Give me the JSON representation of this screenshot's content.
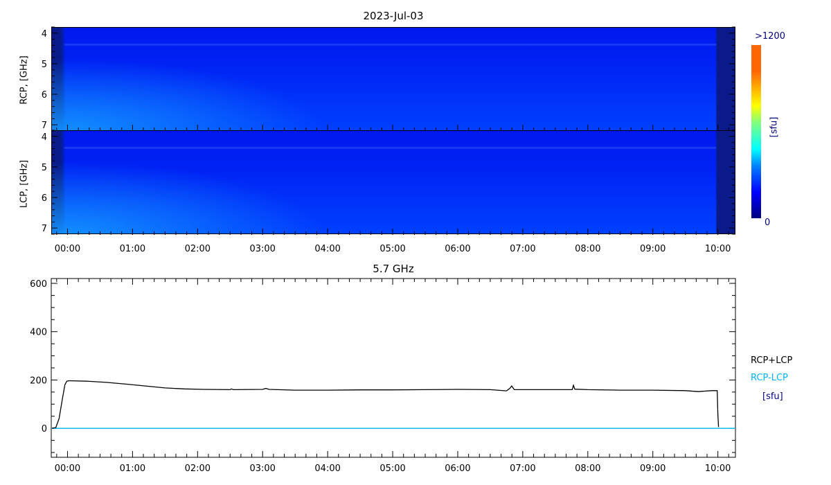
{
  "chart_data": [
    {
      "type": "heatmap",
      "title": "2023-Jul-03",
      "panels": [
        {
          "ylabel": "RCP, [GHz]"
        },
        {
          "ylabel": "LCP, [GHz]"
        }
      ],
      "yticks": [
        "4",
        "5",
        "6",
        "7"
      ],
      "ylim": [
        7.2,
        3.8
      ],
      "xticks": [
        "00:00",
        "01:00",
        "02:00",
        "03:00",
        "04:00",
        "05:00",
        "06:00",
        "07:00",
        "08:00",
        "09:00",
        "10:00"
      ],
      "xlim_hours": [
        -0.25,
        10.27
      ],
      "colorbar": {
        "min_label": "0",
        "max_label": ">1200",
        "unit": "[sfu]",
        "colormap": [
          "#00007f",
          "#0000ff",
          "#00ffff",
          "#ffff00",
          "#ff6600"
        ]
      }
    },
    {
      "type": "line",
      "title": "5.7 GHz",
      "ylim": [
        -120,
        620
      ],
      "yticks": [
        "600",
        "400",
        "200",
        "0"
      ],
      "xticks": [
        "00:00",
        "01:00",
        "02:00",
        "03:00",
        "04:00",
        "05:00",
        "06:00",
        "07:00",
        "08:00",
        "09:00",
        "10:00"
      ],
      "xlim_hours": [
        -0.25,
        10.27
      ],
      "series": [
        {
          "name": "RCP+LCP",
          "color": "#000000",
          "x": [
            -0.24,
            -0.18,
            -0.13,
            -0.08,
            -0.04,
            -0.01,
            0.02,
            0.3,
            0.6,
            0.9,
            1.2,
            1.5,
            1.8,
            2.1,
            2.5,
            2.52,
            2.55,
            3.0,
            3.05,
            3.1,
            3.5,
            4.0,
            4.5,
            5.0,
            5.5,
            6.0,
            6.5,
            6.75,
            6.8,
            6.83,
            6.87,
            7.0,
            7.5,
            7.76,
            7.78,
            7.8,
            8.0,
            8.5,
            9.0,
            9.5,
            9.7,
            9.9,
            9.99,
            10.0,
            10.01
          ],
          "y": [
            0,
            3,
            40,
            120,
            180,
            195,
            197,
            195,
            190,
            183,
            175,
            167,
            163,
            161,
            160,
            163,
            160,
            161,
            165,
            161,
            158,
            158,
            159,
            159,
            160,
            161,
            160,
            155,
            165,
            175,
            160,
            160,
            160,
            160,
            178,
            162,
            160,
            158,
            158,
            156,
            152,
            156,
            156,
            60,
            5
          ]
        },
        {
          "name": "RCP-LCP",
          "color": "#00b4ff",
          "x": [
            -0.25,
            10.27
          ],
          "y": [
            0,
            0
          ]
        }
      ],
      "legend": {
        "items": [
          "RCP+LCP",
          "RCP-LCP"
        ],
        "unit": "[sfu]",
        "placement": "right"
      }
    }
  ]
}
